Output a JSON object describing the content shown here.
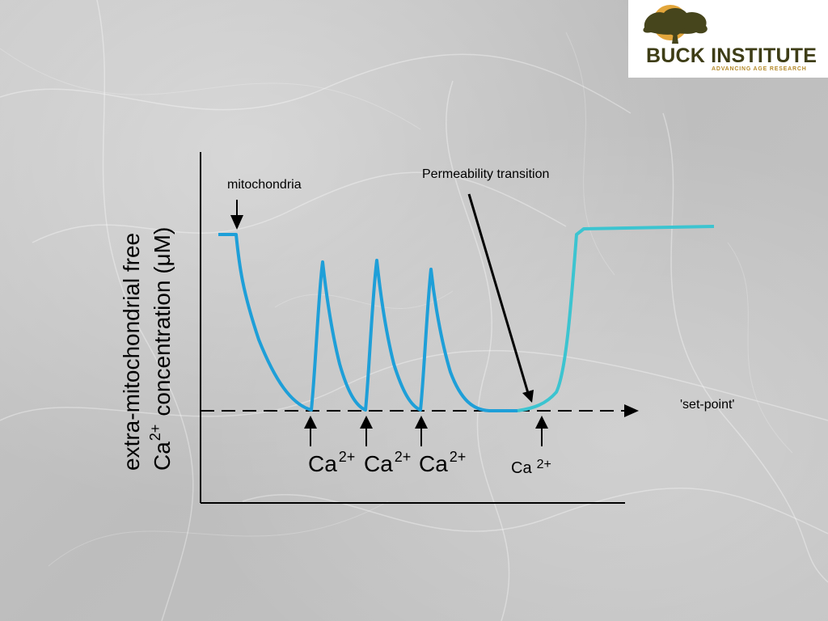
{
  "logo": {
    "title": "BUCK INSTITUTE",
    "subtitle": "ADVANCING AGE RESEARCH"
  },
  "diagram": {
    "y_axis_label_line1": "extra-mitochondrial free",
    "y_axis_label_line2_prefix": "Ca",
    "y_axis_label_line2_sup": "2+",
    "y_axis_label_line2_suffix": "concentration (μM)",
    "mitochondria_label": "mitochondria",
    "permeability_label": "Permeability transition",
    "setpoint_label": "'set-point'",
    "ca_label": "Ca",
    "ca_sup": "2+",
    "colors": {
      "trace": "#1e9fd8",
      "trace_after_transition": "#3cc4d0",
      "axis": "#000000",
      "setpoint_line": "#000000"
    }
  }
}
